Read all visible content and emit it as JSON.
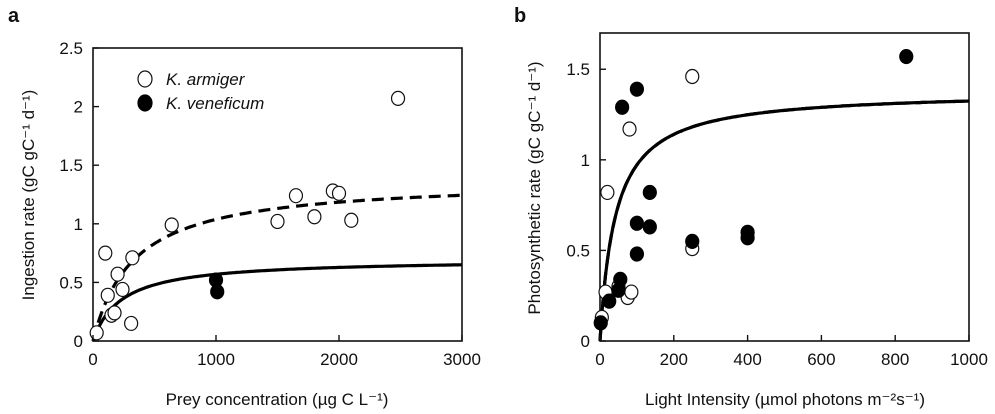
{
  "chart_data": [
    {
      "panel": "a",
      "type": "scatter",
      "xlabel": "Prey concentration (µg C L⁻¹)",
      "ylabel": "Ingestion rate (gC gC⁻¹ d⁻¹)",
      "xlim": [
        0,
        3000
      ],
      "ylim": [
        0,
        2.5
      ],
      "xticks": [
        "0",
        "1000",
        "2000",
        "3000"
      ],
      "yticks": [
        "0",
        "0.5",
        "1",
        "1.5",
        "2",
        "2.5"
      ],
      "legend_position": "top-left",
      "grid": false,
      "series": [
        {
          "name": "K. armiger",
          "marker": "open-circle",
          "points": [
            [
              30,
              0.07
            ],
            [
              100,
              0.75
            ],
            [
              120,
              0.39
            ],
            [
              150,
              0.22
            ],
            [
              175,
              0.24
            ],
            [
              200,
              0.57
            ],
            [
              240,
              0.44
            ],
            [
              310,
              0.15
            ],
            [
              320,
              0.71
            ],
            [
              640,
              0.99
            ],
            [
              1500,
              1.02
            ],
            [
              1650,
              1.24
            ],
            [
              1800,
              1.06
            ],
            [
              1950,
              1.28
            ],
            [
              2000,
              1.26
            ],
            [
              2100,
              1.03
            ],
            [
              2480,
              2.07
            ]
          ]
        },
        {
          "name": "K. veneficum",
          "marker": "filled-circle",
          "points": [
            [
              1000,
              0.52
            ],
            [
              1010,
              0.42
            ]
          ]
        }
      ],
      "fits": [
        {
          "series": "K. armiger",
          "style": "dashed",
          "model": "saturating",
          "vmax": 1.38,
          "k": 330
        },
        {
          "series": "K. veneficum",
          "style": "solid",
          "model": "saturating",
          "vmax": 0.7,
          "k": 230
        }
      ]
    },
    {
      "panel": "b",
      "type": "scatter",
      "xlabel": "Light Intensity (µmol photons m⁻²s⁻¹)",
      "ylabel": "Photosynthetic rate (gC gC⁻¹ d⁻¹)",
      "xlim": [
        0,
        1000
      ],
      "ylim": [
        0,
        1.7
      ],
      "xticks": [
        "0",
        "200",
        "400",
        "600",
        "800",
        "1000"
      ],
      "yticks": [
        "0",
        "0.5",
        "1",
        "1.5"
      ],
      "grid": false,
      "series": [
        {
          "name": "K. armiger",
          "marker": "open-circle",
          "points": [
            [
              5,
              0.13
            ],
            [
              15,
              0.27
            ],
            [
              20,
              0.82
            ],
            [
              50,
              0.3
            ],
            [
              75,
              0.24
            ],
            [
              85,
              0.27
            ],
            [
              80,
              1.17
            ],
            [
              250,
              0.51
            ],
            [
              250,
              1.46
            ]
          ]
        },
        {
          "name": "K. veneficum",
          "marker": "filled-circle",
          "points": [
            [
              2,
              0.1
            ],
            [
              25,
              0.22
            ],
            [
              50,
              0.28
            ],
            [
              55,
              0.34
            ],
            [
              60,
              1.29
            ],
            [
              100,
              1.39
            ],
            [
              100,
              0.65
            ],
            [
              100,
              0.48
            ],
            [
              135,
              0.82
            ],
            [
              135,
              0.63
            ],
            [
              250,
              0.55
            ],
            [
              400,
              0.6
            ],
            [
              400,
              0.57
            ],
            [
              830,
              1.57
            ]
          ]
        }
      ],
      "fits": [
        {
          "series": "K. armiger",
          "style": "dashed",
          "model": "saturating",
          "vmax": 1.38,
          "k": 42,
          "offset": 0.0
        },
        {
          "series": "K. veneficum",
          "style": "solid",
          "model": "saturating",
          "vmax": 1.38,
          "k": 42,
          "offset": 0.0
        }
      ]
    }
  ]
}
